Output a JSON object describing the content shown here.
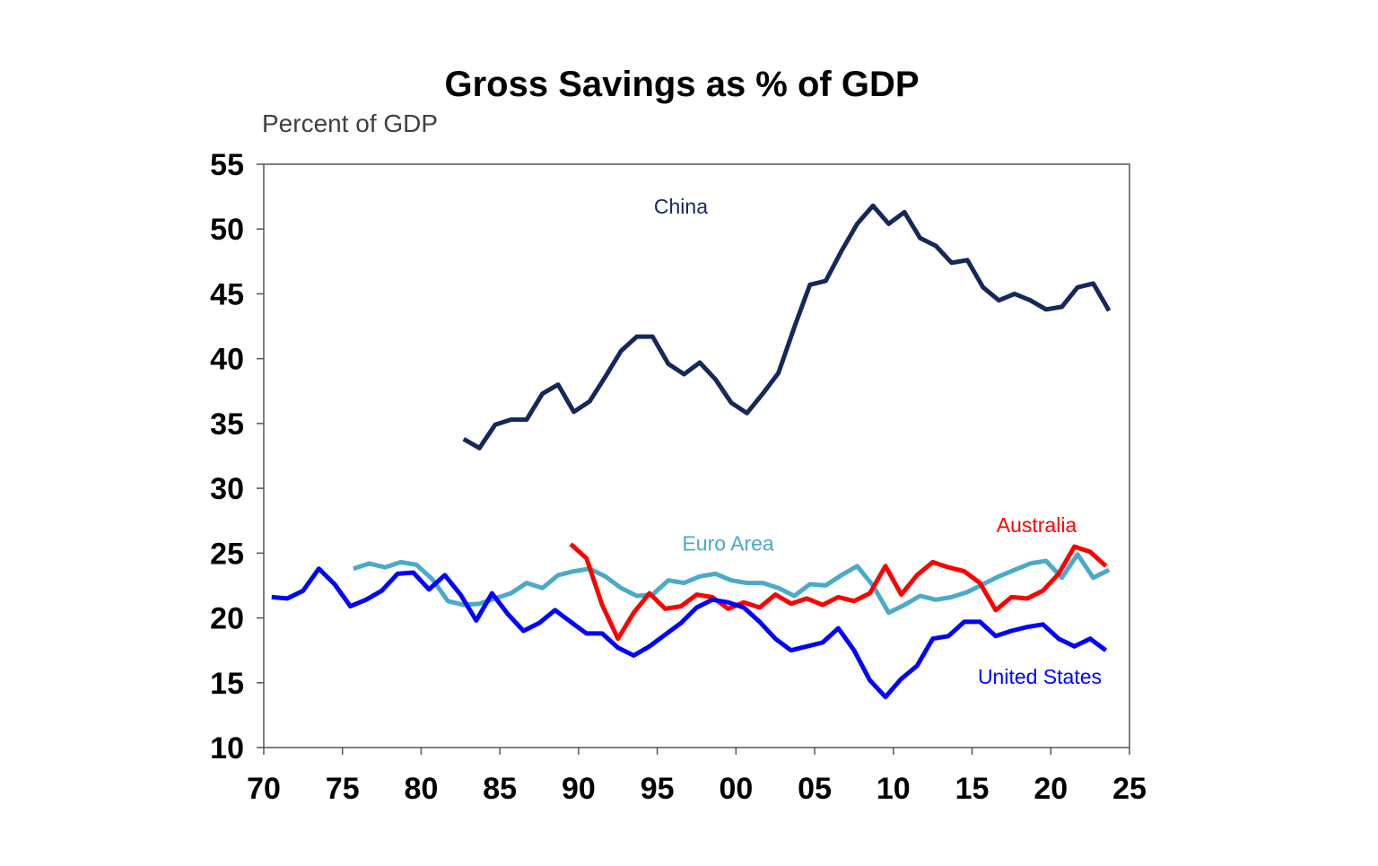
{
  "chart_data": {
    "type": "line",
    "title": "Gross Savings as % of GDP",
    "ylabel": "Percent of GDP",
    "xlabel": "",
    "xlim": [
      1970,
      2025
    ],
    "ylim": [
      10,
      55
    ],
    "x_ticks": [
      {
        "value": 1970,
        "label": "70"
      },
      {
        "value": 1975,
        "label": "75"
      },
      {
        "value": 1980,
        "label": "80"
      },
      {
        "value": 1985,
        "label": "85"
      },
      {
        "value": 1990,
        "label": "90"
      },
      {
        "value": 1995,
        "label": "95"
      },
      {
        "value": 2000,
        "label": "00"
      },
      {
        "value": 2005,
        "label": "05"
      },
      {
        "value": 2010,
        "label": "10"
      },
      {
        "value": 2015,
        "label": "15"
      },
      {
        "value": 2020,
        "label": "20"
      },
      {
        "value": 2025,
        "label": "25"
      }
    ],
    "y_ticks": [
      {
        "value": 55,
        "label": "55"
      },
      {
        "value": 50,
        "label": "50"
      },
      {
        "value": 45,
        "label": "45"
      },
      {
        "value": 40,
        "label": "40"
      },
      {
        "value": 35,
        "label": "35"
      },
      {
        "value": 30,
        "label": "30"
      },
      {
        "value": 25,
        "label": "25"
      },
      {
        "value": 20,
        "label": "20"
      },
      {
        "value": 15,
        "label": "15"
      },
      {
        "value": 10,
        "label": "10"
      }
    ],
    "series": [
      {
        "name": "China",
        "label": "China",
        "color": "#15285a",
        "label_pos": [
          1996.5,
          51.2
        ],
        "x": [
          1982.7,
          1983.7,
          1984.7,
          1985.7,
          1986.7,
          1987.7,
          1988.7,
          1989.7,
          1990.7,
          1991.7,
          1992.7,
          1993.7,
          1994.7,
          1995.7,
          1996.7,
          1997.7,
          1998.7,
          1999.7,
          2000.7,
          2001.7,
          2002.7,
          2003.7,
          2004.7,
          2005.7,
          2006.7,
          2007.7,
          2008.7,
          2009.7,
          2010.7,
          2011.7,
          2012.7,
          2013.7,
          2014.7,
          2015.7,
          2016.7,
          2017.7,
          2018.7,
          2019.7,
          2020.7,
          2021.7,
          2022.7,
          2023.7
        ],
        "values": [
          33.8,
          33.1,
          34.9,
          35.3,
          35.3,
          37.3,
          38.0,
          35.9,
          36.7,
          38.6,
          40.6,
          41.7,
          41.7,
          39.6,
          38.8,
          39.7,
          38.4,
          36.6,
          35.8,
          37.3,
          38.9,
          42.4,
          45.7,
          46.0,
          48.3,
          50.4,
          51.8,
          50.4,
          51.3,
          49.3,
          48.7,
          47.4,
          47.6,
          45.5,
          44.5,
          45.0,
          44.5,
          43.8,
          44.0,
          45.5,
          45.8,
          43.7
        ]
      },
      {
        "name": "Euro Area",
        "label": "Euro Area",
        "color": "#4aaac8",
        "label_pos": [
          1999.5,
          25.2
        ],
        "x": [
          1975.7,
          1976.7,
          1977.7,
          1978.7,
          1979.7,
          1980.7,
          1981.7,
          1982.7,
          1983.7,
          1984.7,
          1985.7,
          1986.7,
          1987.7,
          1988.7,
          1989.7,
          1990.7,
          1991.7,
          1992.7,
          1993.7,
          1994.7,
          1995.7,
          1996.7,
          1997.7,
          1998.7,
          1999.7,
          2000.7,
          2001.7,
          2002.7,
          2003.7,
          2004.7,
          2005.7,
          2006.7,
          2007.7,
          2008.7,
          2009.7,
          2010.7,
          2011.7,
          2012.7,
          2013.7,
          2014.7,
          2015.7,
          2016.7,
          2017.7,
          2018.7,
          2019.7,
          2020.7,
          2021.7,
          2022.7,
          2023.7
        ],
        "values": [
          23.8,
          24.2,
          23.9,
          24.3,
          24.1,
          23.0,
          21.3,
          21.0,
          21.1,
          21.5,
          21.9,
          22.7,
          22.3,
          23.3,
          23.6,
          23.8,
          23.2,
          22.3,
          21.7,
          21.8,
          22.9,
          22.7,
          23.2,
          23.4,
          22.9,
          22.7,
          22.7,
          22.3,
          21.7,
          22.6,
          22.5,
          23.3,
          24.0,
          22.5,
          20.4,
          21.0,
          21.7,
          21.4,
          21.6,
          22.0,
          22.6,
          23.2,
          23.7,
          24.2,
          24.4,
          23.1,
          24.9,
          23.1,
          23.7
        ]
      },
      {
        "name": "Australia",
        "label": "Australia",
        "color": "#ff0000",
        "label_pos": [
          2019.1,
          26.6
        ],
        "x": [
          1989.5,
          1990.5,
          1991.5,
          1992.5,
          1993.5,
          1994.5,
          1995.5,
          1996.5,
          1997.5,
          1998.5,
          1999.5,
          2000.5,
          2001.5,
          2002.5,
          2003.5,
          2004.5,
          2005.5,
          2006.5,
          2007.5,
          2008.5,
          2009.5,
          2010.5,
          2011.5,
          2012.5,
          2013.5,
          2014.5,
          2015.5,
          2016.5,
          2017.5,
          2018.5,
          2019.5,
          2020.5,
          2021.5,
          2022.5,
          2023.5
        ],
        "values": [
          25.7,
          24.6,
          21.0,
          18.4,
          20.4,
          21.9,
          20.7,
          20.9,
          21.8,
          21.6,
          20.7,
          21.2,
          20.8,
          21.8,
          21.1,
          21.5,
          21.0,
          21.6,
          21.3,
          21.9,
          24.0,
          21.8,
          23.3,
          24.3,
          23.9,
          23.6,
          22.7,
          20.6,
          21.6,
          21.5,
          22.1,
          23.4,
          25.5,
          25.1,
          24.0
        ]
      },
      {
        "name": "United States",
        "label": "United States",
        "color": "#0000ff",
        "label_pos": [
          2019.3,
          14.9
        ],
        "x": [
          1970.5,
          1971.5,
          1972.5,
          1973.5,
          1974.5,
          1975.5,
          1976.5,
          1977.5,
          1978.5,
          1979.5,
          1980.5,
          1981.5,
          1982.5,
          1983.5,
          1984.5,
          1985.5,
          1986.5,
          1987.5,
          1988.5,
          1989.5,
          1990.5,
          1991.5,
          1992.5,
          1993.5,
          1994.5,
          1995.5,
          1996.5,
          1997.5,
          1998.5,
          1999.5,
          2000.5,
          2001.5,
          2002.5,
          2003.5,
          2004.5,
          2005.5,
          2006.5,
          2007.5,
          2008.5,
          2009.5,
          2010.5,
          2011.5,
          2012.5,
          2013.5,
          2014.5,
          2015.5,
          2016.5,
          2017.5,
          2018.5,
          2019.5,
          2020.5,
          2021.5,
          2022.5,
          2023.5
        ],
        "values": [
          21.6,
          21.5,
          22.1,
          23.8,
          22.6,
          20.9,
          21.4,
          22.1,
          23.4,
          23.5,
          22.2,
          23.3,
          21.8,
          19.8,
          21.9,
          20.3,
          19.0,
          19.6,
          20.6,
          19.7,
          18.8,
          18.8,
          17.7,
          17.1,
          17.8,
          18.7,
          19.6,
          20.8,
          21.4,
          21.2,
          20.8,
          19.7,
          18.4,
          17.5,
          17.8,
          18.1,
          19.2,
          17.5,
          15.2,
          13.9,
          15.3,
          16.3,
          18.4,
          18.6,
          19.7,
          19.7,
          18.6,
          19.0,
          19.3,
          19.5,
          18.4,
          17.8,
          18.4,
          17.5
        ]
      }
    ]
  }
}
